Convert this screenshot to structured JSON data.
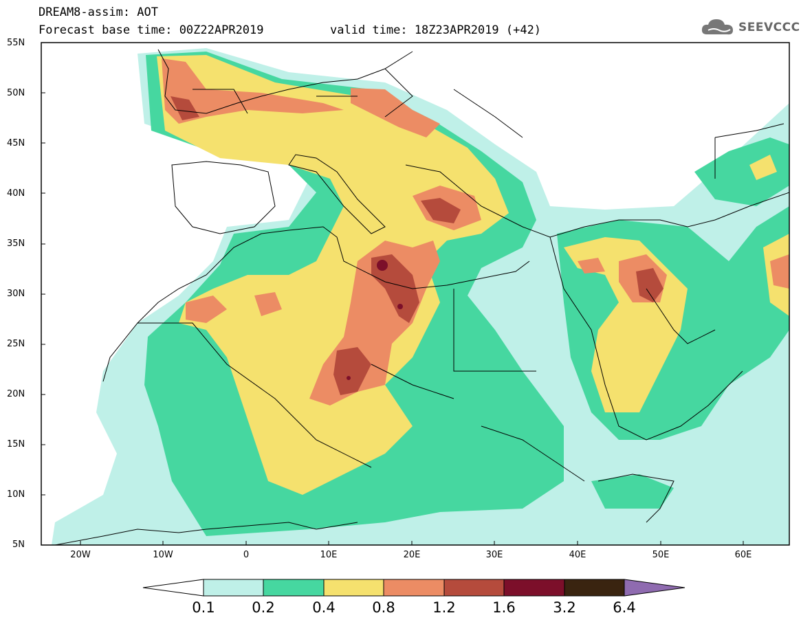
{
  "header": {
    "title": "DREAM8-assim: AOT",
    "base_time": "Forecast base time: 00Z22APR2019",
    "valid_time": "valid time: 18Z23APR2019 (+42)"
  },
  "logo": {
    "text": "SEEVCCC",
    "icon": "cloud-icon"
  },
  "axes": {
    "lat_labels": [
      "55N",
      "50N",
      "45N",
      "40N",
      "35N",
      "30N",
      "25N",
      "20N",
      "15N",
      "10N",
      "5N"
    ],
    "lon_labels": [
      "20W",
      "10W",
      "0",
      "10E",
      "20E",
      "30E",
      "40E",
      "50E",
      "60E"
    ]
  },
  "colorbar": {
    "labels": [
      "0.1",
      "0.2",
      "0.4",
      "0.8",
      "1.2",
      "1.6",
      "3.2",
      "6.4"
    ],
    "colors": [
      "#ffffff",
      "#bff0e8",
      "#46d7a0",
      "#f5e16e",
      "#ec8c64",
      "#b54b3c",
      "#7c0f2a",
      "#3a2410",
      "#8f6bb0"
    ]
  },
  "map": {
    "region": "North Africa, Europe, Middle East",
    "field": "Aerosol Optical Thickness",
    "level_colors": {
      "l1": "#bff0e8",
      "l2": "#46d7a0",
      "l3": "#f5e16e",
      "l4": "#ec8c64",
      "l5": "#b54b3c",
      "l6": "#7c0f2a"
    }
  }
}
